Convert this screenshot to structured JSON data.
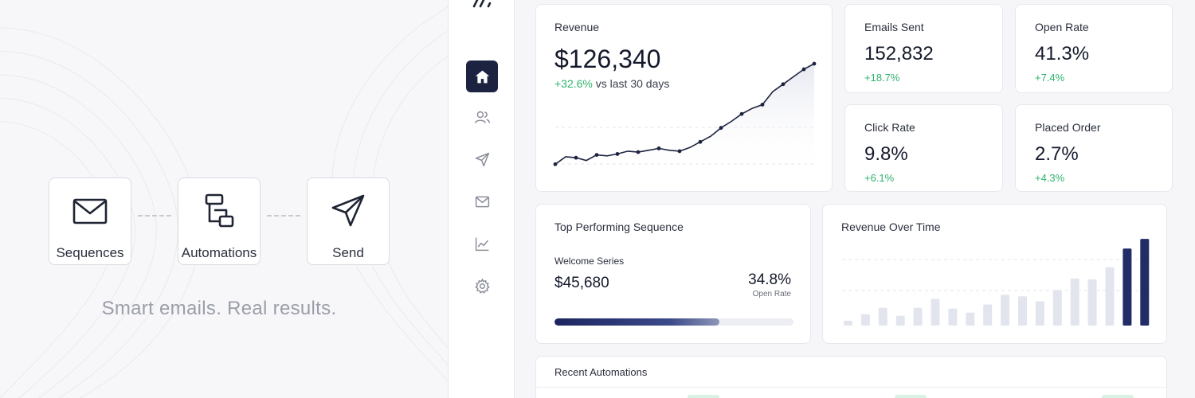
{
  "hero": {
    "steps": [
      {
        "label": "Sequences",
        "icon": "envelope-icon"
      },
      {
        "label": "Automations",
        "icon": "workflow-icon"
      },
      {
        "label": "Send",
        "icon": "paper-plane-icon"
      }
    ],
    "tagline": "Smart emails. Real results."
  },
  "sidebar": {
    "items": [
      {
        "name": "home",
        "icon": "home-icon",
        "active": true
      },
      {
        "name": "contacts",
        "icon": "users-icon",
        "active": false
      },
      {
        "name": "campaigns",
        "icon": "send-icon",
        "active": false
      },
      {
        "name": "emails",
        "icon": "mail-icon",
        "active": false
      },
      {
        "name": "analytics",
        "icon": "chart-icon",
        "active": false
      },
      {
        "name": "settings",
        "icon": "gear-icon",
        "active": false
      }
    ]
  },
  "revenue": {
    "title": "Revenue",
    "value": "$126,340",
    "change": "+32.6%",
    "comparison": "vs last 30 days"
  },
  "kpis": {
    "emails_sent": {
      "title": "Emails Sent",
      "value": "152,832",
      "change": "+18.7%"
    },
    "open_rate": {
      "title": "Open Rate",
      "value": "41.3%",
      "change": "+7.4%"
    },
    "click_rate": {
      "title": "Click Rate",
      "value": "9.8%",
      "change": "+6.1%"
    },
    "placed_order": {
      "title": "Placed Order",
      "value": "2.7%",
      "change": "+4.3%"
    }
  },
  "top_sequence": {
    "title": "Top Performing Sequence",
    "name": "Welcome Series",
    "revenue": "$45,680",
    "rate": "34.8%",
    "rate_label": "Open Rate",
    "progress": 0.69
  },
  "revenue_over_time": {
    "title": "Revenue Over Time"
  },
  "recent_automations": {
    "title": "Recent Automations"
  },
  "colors": {
    "navy": "#1c2340",
    "bar_light": "#e3e5ee",
    "bar_dark": "#222c66",
    "positive": "#2fb36d"
  },
  "chart_data": [
    {
      "type": "line",
      "series": [
        {
          "values": [
            10,
            18,
            17,
            14,
            20,
            19,
            21,
            24,
            23,
            25,
            27,
            25,
            24,
            28,
            34,
            40,
            49,
            56,
            64,
            70,
            74,
            88,
            96,
            104,
            112,
            118
          ]
        }
      ],
      "ylim": [
        0,
        130
      ],
      "grid": true
    },
    {
      "type": "bar",
      "series": [
        {
          "values": [
            6,
            14,
            22,
            12,
            22,
            33,
            21,
            16,
            26,
            38,
            36,
            30,
            44,
            58,
            57,
            72,
            95,
            107
          ]
        }
      ],
      "highlight_last": 2,
      "ylim": [
        0,
        110
      ],
      "grid": true
    }
  ]
}
